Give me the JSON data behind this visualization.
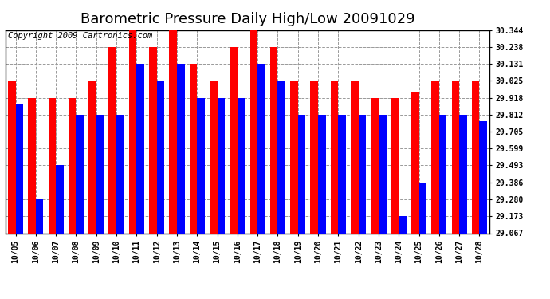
{
  "title": "Barometric Pressure Daily High/Low 20091029",
  "copyright": "Copyright 2009 Cartronics.com",
  "dates": [
    "10/05",
    "10/06",
    "10/07",
    "10/08",
    "10/09",
    "10/10",
    "10/11",
    "10/12",
    "10/13",
    "10/14",
    "10/15",
    "10/16",
    "10/17",
    "10/18",
    "10/19",
    "10/20",
    "10/21",
    "10/22",
    "10/23",
    "10/24",
    "10/25",
    "10/26",
    "10/27",
    "10/28"
  ],
  "highs": [
    30.025,
    29.918,
    29.918,
    29.918,
    30.025,
    30.238,
    30.344,
    30.238,
    30.344,
    30.131,
    30.025,
    30.238,
    30.344,
    30.238,
    30.025,
    30.025,
    30.025,
    30.025,
    29.918,
    29.918,
    29.95,
    30.025,
    30.025,
    30.025
  ],
  "lows": [
    29.878,
    29.28,
    29.493,
    29.812,
    29.812,
    29.812,
    30.131,
    30.025,
    30.131,
    29.918,
    29.918,
    29.918,
    30.131,
    30.025,
    29.812,
    29.812,
    29.812,
    29.812,
    29.812,
    29.173,
    29.386,
    29.812,
    29.812,
    29.773
  ],
  "y_ticks": [
    29.067,
    29.173,
    29.28,
    29.386,
    29.493,
    29.599,
    29.705,
    29.812,
    29.918,
    30.025,
    30.131,
    30.238,
    30.344
  ],
  "ymin": 29.067,
  "ymax": 30.344,
  "high_color": "#ff0000",
  "low_color": "#0000ff",
  "bg_color": "#ffffff",
  "grid_color": "#999999",
  "bar_width": 0.38,
  "title_fontsize": 13,
  "copyright_fontsize": 7.5
}
